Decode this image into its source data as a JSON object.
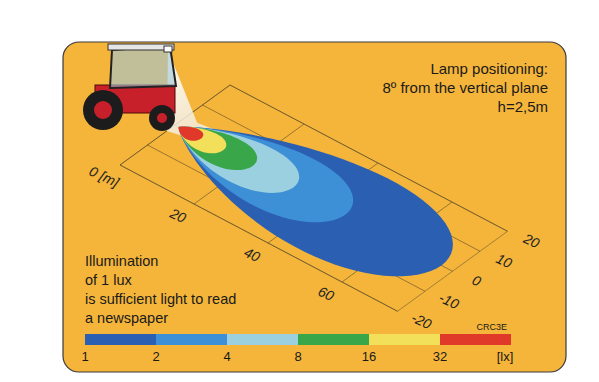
{
  "chart_data": {
    "type": "isolux",
    "lamp_text": [
      "Lamp positioning:",
      "8º from the vertical plane",
      "h=2,5m"
    ],
    "note": [
      "Illumination",
      "of 1 lux",
      "is sufficient light to read",
      "a newspaper"
    ],
    "code": "CRC3E",
    "xlim": [
      0,
      75
    ],
    "xticks": [
      {
        "value": 0,
        "label": "0 [m]"
      },
      20,
      40,
      60
    ],
    "ylim": [
      -20,
      20
    ],
    "yticks": [
      -20,
      -10,
      0,
      10,
      20
    ],
    "grid": true,
    "contours": [
      {
        "value": 1,
        "start": 1,
        "end": 72,
        "half_width": 18
      },
      {
        "value": 2,
        "start": 1,
        "end": 46,
        "half_width": 12
      },
      {
        "value": 4,
        "start": 1,
        "end": 32,
        "half_width": 8.5
      },
      {
        "value": 8,
        "start": 1,
        "end": 21,
        "half_width": 6
      },
      {
        "value": 16,
        "start": 1,
        "end": 13,
        "half_width": 4
      },
      {
        "value": 32,
        "start": 1,
        "end": 7,
        "half_width": 2.5
      }
    ],
    "colorbar": {
      "range": [
        1,
        64
      ],
      "ticks": [
        1,
        2,
        4,
        8,
        16,
        32
      ],
      "colors": [
        "#2b5fb2",
        "#3d8fd6",
        "#9ad0e0",
        "#3aa64a",
        "#f3e05a",
        "#e0392a"
      ],
      "unit": "[lx]",
      "log": true
    }
  }
}
